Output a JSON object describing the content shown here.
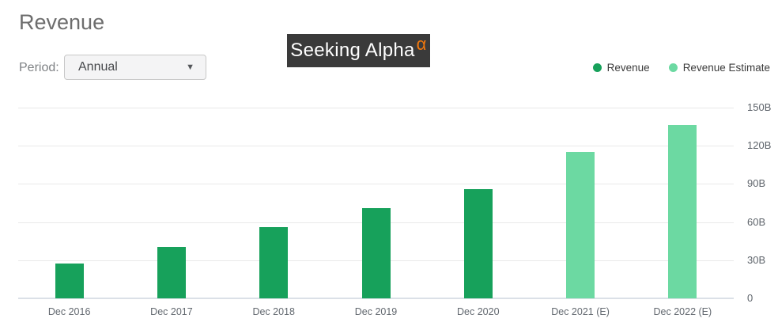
{
  "header": {
    "title": "Revenue"
  },
  "controls": {
    "period_label": "Period:",
    "period_value": "Annual",
    "dropdown_arrow": "▼"
  },
  "logo": {
    "text": "Seeking Alpha",
    "alpha": "α",
    "background": "#3a3a3a",
    "alpha_color": "#f1780e"
  },
  "chart_data": {
    "type": "bar",
    "title": "Revenue",
    "categories": [
      "Dec 2016",
      "Dec 2017",
      "Dec 2018",
      "Dec 2019",
      "Dec 2020",
      "Dec 2021 (E)",
      "Dec 2022 (E)"
    ],
    "series": [
      {
        "name": "Revenue",
        "color": "#17a15b",
        "values": [
          27.6,
          40.7,
          55.8,
          70.7,
          86.0,
          null,
          null
        ]
      },
      {
        "name": "Revenue Estimate",
        "color": "#6cd9a2",
        "values": [
          null,
          null,
          null,
          null,
          null,
          115.0,
          136.5
        ]
      }
    ],
    "ylim": [
      0,
      150
    ],
    "yticks": [
      {
        "label": "150B",
        "value": 150
      },
      {
        "label": "120B",
        "value": 120
      },
      {
        "label": "90B",
        "value": 90
      },
      {
        "label": "60B",
        "value": 60
      },
      {
        "label": "30B",
        "value": 30
      },
      {
        "label": "0",
        "value": 0
      }
    ],
    "grid": true,
    "legend_position": "top-right",
    "xlabel": "",
    "ylabel": ""
  }
}
